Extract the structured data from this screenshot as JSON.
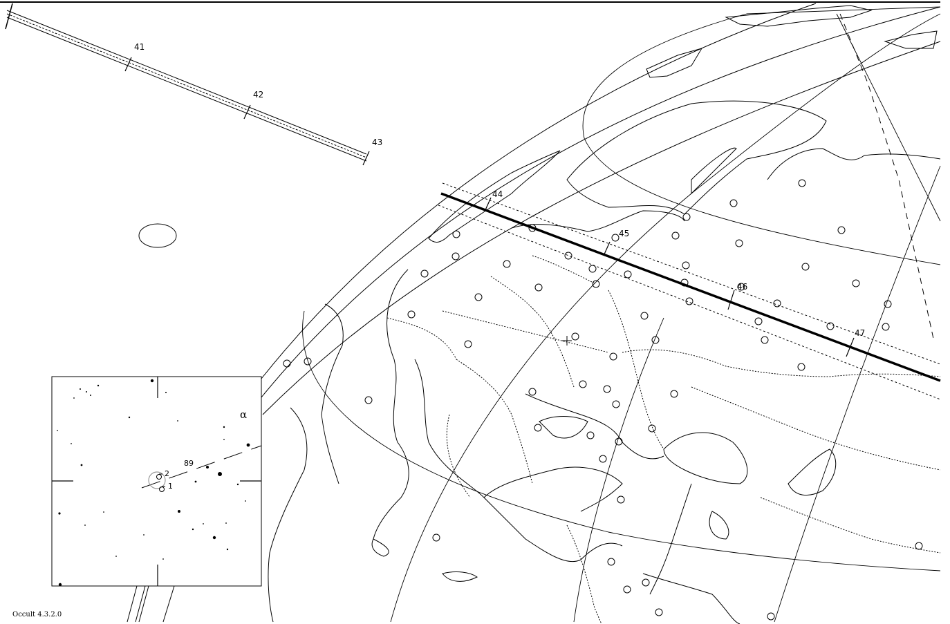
{
  "app": {
    "version_label": "Occult 4.3.2.0"
  },
  "path": {
    "time_ticks": [
      "41",
      "42",
      "43",
      "44",
      "45",
      "46",
      "47"
    ]
  },
  "finder_chart": {
    "star_labels": {
      "mag": "89",
      "primary": "1",
      "secondary": "2",
      "greek": "α"
    }
  },
  "colors": {
    "ink": "#000000",
    "background": "#ffffff",
    "target_circle": "#999999"
  }
}
